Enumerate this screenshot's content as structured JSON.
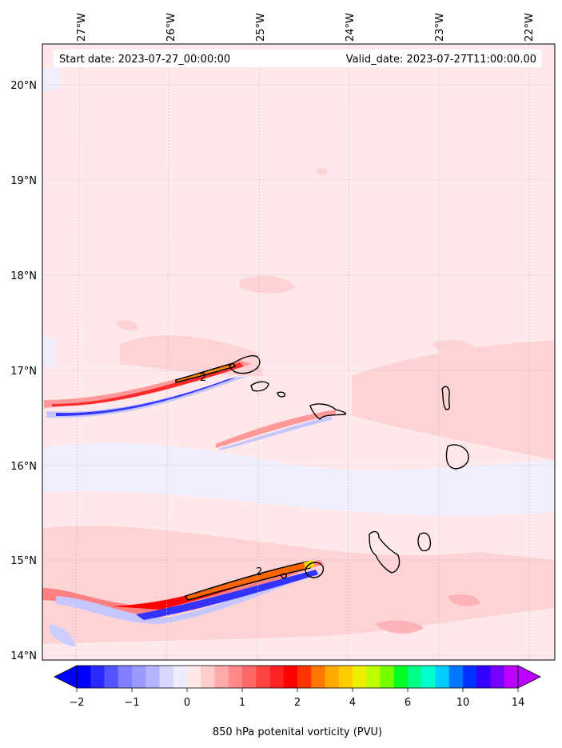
{
  "header": {
    "start_date": "Start date: 2023-07-27_00:00:00",
    "valid_date": "Valid_date: 2023-07-27T11:00:00.00"
  },
  "map": {
    "lon_labels": [
      "27°W",
      "26°W",
      "25°W",
      "24°W",
      "23°W",
      "22°W"
    ],
    "lat_labels": [
      "20°N",
      "19°N",
      "18°N",
      "17°N",
      "16°N",
      "15°N",
      "14°N"
    ],
    "contour_labels": [
      "2",
      "2"
    ],
    "background_color": "#fee8e9"
  },
  "colorbar": {
    "ticks": [
      "−2",
      "−1",
      "0",
      "1",
      "2",
      "4",
      "6",
      "10",
      "14"
    ],
    "label": "850 hPa potenital vorticity (PVU)",
    "colors": [
      "#0000ff",
      "#2a2aff",
      "#5555ff",
      "#7f7fff",
      "#9999ff",
      "#b3b3ff",
      "#d6d6ff",
      "#ededff",
      "#ffe8e8",
      "#ffcccc",
      "#ffaaaa",
      "#ff8888",
      "#ff6666",
      "#ff4444",
      "#ff2222",
      "#ff0000",
      "#ff3300",
      "#ff7700",
      "#ffaa00",
      "#ffcc00",
      "#eeee00",
      "#bbff00",
      "#77ff00",
      "#00ff22",
      "#00ff88",
      "#00ffcc",
      "#00ccff",
      "#0077ff",
      "#0033ff",
      "#3300ff",
      "#7700ff",
      "#bb00ff"
    ]
  }
}
